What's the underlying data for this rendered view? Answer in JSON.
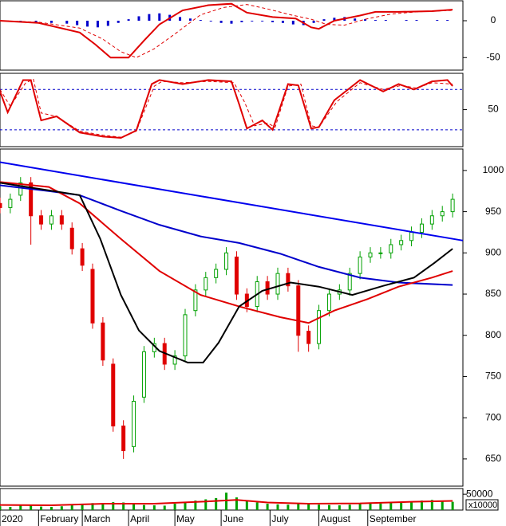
{
  "chart_data": [
    {
      "type": "indicator",
      "xlim": [
        0,
        180
      ],
      "ylim": [
        -67,
        27
      ],
      "yticks": [
        0,
        -50
      ],
      "series": [
        {
          "kind": "bar",
          "color": "#0000cc",
          "x": [
            2,
            8,
            14,
            20,
            26,
            30,
            34,
            38,
            42,
            46,
            50,
            54,
            58,
            62,
            66,
            70,
            74,
            78,
            82,
            86,
            90,
            94,
            98,
            102,
            106,
            110,
            114,
            118,
            122,
            126,
            130,
            134,
            138,
            142,
            146,
            150,
            154,
            158,
            162,
            166,
            170,
            174
          ],
          "values": [
            -1,
            -2,
            -2,
            -3,
            -4,
            -6,
            -8,
            -9,
            -7,
            -3,
            2,
            6,
            9,
            10,
            8,
            5,
            3,
            1,
            -1,
            -3,
            -4,
            -2,
            -1,
            -1,
            -2,
            -3,
            -5,
            -6,
            -3,
            2,
            4,
            5,
            3,
            2,
            1,
            1,
            0,
            1,
            1,
            0,
            1,
            1
          ]
        },
        {
          "kind": "dashed",
          "color": "#e00000",
          "x": [
            0,
            15,
            31,
            40,
            47,
            53,
            60,
            68,
            78,
            87,
            96,
            104,
            113,
            121,
            127,
            134,
            142,
            152,
            162,
            176
          ],
          "values": [
            0,
            -2,
            -10,
            -25,
            -42,
            -50,
            -38,
            -18,
            8,
            18,
            22,
            16,
            8,
            2,
            -5,
            -6,
            2,
            9,
            12,
            14
          ]
        },
        {
          "kind": "line",
          "color": "#e00000",
          "x": [
            0,
            15,
            31,
            37,
            43,
            50,
            56,
            62,
            71,
            81,
            90,
            96,
            106,
            115,
            121,
            124,
            130,
            140,
            146,
            155,
            168,
            176
          ],
          "values": [
            0,
            -3,
            -16,
            -32,
            -50,
            -50,
            -27,
            -5,
            14,
            21,
            23,
            11,
            5,
            3,
            -9,
            -11,
            0,
            7,
            12,
            12,
            13,
            15
          ]
        }
      ]
    },
    {
      "type": "indicator",
      "xlim": [
        0,
        180
      ],
      "ylim": [
        -5,
        104
      ],
      "yticks": [
        50
      ],
      "hlines": [
        80,
        20
      ],
      "hline_color": "#0000cc",
      "series": [
        {
          "kind": "dashed",
          "color": "#e00000",
          "x": [
            0,
            4,
            10,
            13,
            16,
            22,
            31,
            40,
            47,
            53,
            60,
            63,
            71,
            81,
            91,
            95,
            99,
            104,
            107,
            112,
            117,
            121,
            124,
            131,
            140,
            149,
            156,
            162,
            168,
            176
          ],
          "values": [
            80,
            55,
            90,
            95,
            45,
            40,
            18,
            12,
            9,
            18,
            85,
            92,
            90,
            92,
            90,
            62,
            26,
            30,
            24,
            85,
            88,
            26,
            24,
            62,
            90,
            80,
            86,
            82,
            90,
            88
          ]
        },
        {
          "kind": "line",
          "color": "#e00000",
          "x": [
            0,
            3,
            9,
            12,
            16,
            22,
            31,
            40,
            47,
            53,
            59,
            62,
            71,
            81,
            90,
            93,
            96,
            102,
            106,
            112,
            116,
            121,
            124,
            130,
            140,
            149,
            155,
            161,
            168,
            174,
            176
          ],
          "values": [
            77,
            46,
            94,
            94,
            34,
            40,
            16,
            10,
            8,
            19,
            88,
            94,
            88,
            94,
            92,
            58,
            22,
            34,
            20,
            88,
            86,
            22,
            24,
            64,
            94,
            77,
            88,
            80,
            92,
            94,
            85
          ]
        }
      ]
    },
    {
      "type": "candlestick",
      "xlim": [
        0,
        180
      ],
      "ylim": [
        617,
        1026
      ],
      "yticks": [
        650,
        700,
        750,
        800,
        850,
        900,
        950,
        1000
      ],
      "candles": {
        "up_color": "#00a000",
        "down_color": "#e00000",
        "x": [
          0,
          4,
          8,
          12,
          16,
          20,
          24,
          28,
          32,
          36,
          40,
          44,
          48,
          52,
          56,
          60,
          64,
          68,
          72,
          76,
          80,
          84,
          88,
          92,
          96,
          100,
          104,
          108,
          112,
          116,
          120,
          124,
          128,
          132,
          136,
          140,
          144,
          148,
          152,
          156,
          160,
          164,
          168,
          172,
          176
        ],
        "open": [
          960,
          955,
          970,
          985,
          945,
          935,
          945,
          930,
          905,
          880,
          815,
          765,
          690,
          665,
          725,
          780,
          790,
          765,
          775,
          830,
          855,
          870,
          880,
          895,
          850,
          835,
          865,
          850,
          875,
          860,
          805,
          790,
          830,
          850,
          855,
          875,
          895,
          900,
          900,
          910,
          915,
          925,
          935,
          945,
          950
        ],
        "high": [
          967,
          972,
          992,
          992,
          952,
          952,
          952,
          937,
          912,
          887,
          822,
          772,
          697,
          727,
          787,
          797,
          797,
          782,
          832,
          862,
          877,
          887,
          907,
          902,
          857,
          872,
          872,
          882,
          882,
          867,
          812,
          837,
          857,
          862,
          882,
          902,
          907,
          907,
          917,
          922,
          932,
          942,
          952,
          957,
          972
        ],
        "low": [
          948,
          948,
          963,
          910,
          928,
          928,
          928,
          898,
          878,
          808,
          763,
          683,
          650,
          658,
          718,
          773,
          758,
          758,
          768,
          823,
          848,
          863,
          873,
          843,
          828,
          828,
          843,
          843,
          853,
          780,
          780,
          783,
          823,
          843,
          848,
          868,
          888,
          893,
          893,
          903,
          908,
          918,
          928,
          938,
          943
        ],
        "close": [
          955,
          965,
          985,
          945,
          935,
          945,
          935,
          905,
          885,
          815,
          770,
          690,
          660,
          720,
          780,
          790,
          765,
          775,
          825,
          855,
          870,
          880,
          900,
          850,
          835,
          865,
          850,
          875,
          860,
          800,
          790,
          830,
          850,
          855,
          875,
          895,
          900,
          900,
          910,
          915,
          925,
          935,
          945,
          950,
          965
        ]
      },
      "series": [
        {
          "kind": "line",
          "color": "#0000ee",
          "x": [
            0,
            180
          ],
          "values": [
            1010,
            915
          ]
        },
        {
          "kind": "line",
          "color": "#0000cc",
          "x": [
            0,
            19,
            31,
            47,
            62,
            78,
            93,
            109,
            124,
            140,
            155,
            176
          ],
          "values": [
            982,
            975,
            970,
            951,
            934,
            920,
            912,
            899,
            883,
            870,
            864,
            861
          ]
        },
        {
          "kind": "line",
          "color": "#e00000",
          "x": [
            0,
            19,
            31,
            47,
            62,
            78,
            93,
            109,
            120,
            130,
            143,
            155,
            168,
            176
          ],
          "values": [
            986,
            980,
            960,
            917,
            878,
            849,
            835,
            822,
            815,
            830,
            844,
            859,
            870,
            878
          ]
        },
        {
          "kind": "line",
          "color": "#000000",
          "x": [
            0,
            31,
            39,
            47,
            54,
            62,
            73,
            79,
            85,
            93,
            102,
            113,
            124,
            137,
            149,
            161,
            169,
            176
          ],
          "values": [
            985,
            970,
            917,
            849,
            806,
            781,
            767,
            767,
            791,
            835,
            854,
            864,
            859,
            849,
            860,
            870,
            888,
            905
          ]
        }
      ]
    },
    {
      "type": "volume",
      "xlim": [
        0,
        180
      ],
      "ylim": [
        0,
        68000
      ],
      "yticks": [
        50000
      ],
      "unit_label": "x10000",
      "xticks": [
        {
          "value": 0,
          "label": "2020"
        },
        {
          "value": 15,
          "label": "February"
        },
        {
          "value": 32,
          "label": "March"
        },
        {
          "value": 50,
          "label": "April"
        },
        {
          "value": 68,
          "label": "May"
        },
        {
          "value": 86,
          "label": "June"
        },
        {
          "value": 105,
          "label": "July"
        },
        {
          "value": 124,
          "label": "August"
        },
        {
          "value": 143,
          "label": "September"
        }
      ],
      "bar_color": "#00a000",
      "x": [
        0,
        4,
        8,
        12,
        16,
        20,
        24,
        28,
        32,
        36,
        40,
        44,
        48,
        52,
        56,
        60,
        64,
        68,
        72,
        76,
        80,
        84,
        88,
        92,
        96,
        100,
        104,
        108,
        112,
        116,
        120,
        124,
        128,
        132,
        136,
        140,
        144,
        148,
        152,
        156,
        160,
        164,
        168,
        172,
        176
      ],
      "values": [
        12000,
        10000,
        14000,
        16000,
        11000,
        10000,
        12000,
        15000,
        18000,
        22000,
        20000,
        25000,
        24000,
        18000,
        16000,
        15000,
        14000,
        20000,
        26000,
        30000,
        34000,
        38000,
        55000,
        40000,
        28000,
        24000,
        20000,
        18000,
        17000,
        22000,
        19000,
        17000,
        16000,
        15000,
        17000,
        20000,
        22000,
        21000,
        24000,
        25000,
        26000,
        30000,
        32000,
        30000,
        26000
      ],
      "ma": {
        "color": "#e00000",
        "x": [
          0,
          20,
          40,
          60,
          80,
          92,
          104,
          120,
          140,
          160,
          176
        ],
        "values": [
          16000,
          15000,
          20000,
          20000,
          27000,
          32000,
          24000,
          20000,
          21000,
          26000,
          29000
        ]
      }
    }
  ]
}
